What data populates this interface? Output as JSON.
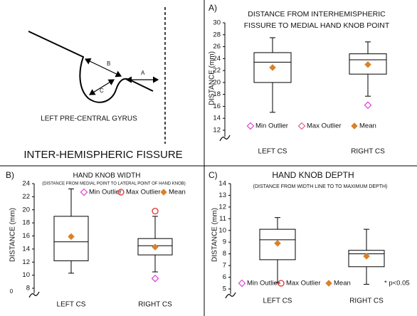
{
  "diagram": {
    "arrow_a": "A",
    "arrow_b": "B",
    "arrow_c": "C",
    "caption": "LEFT PRE-CENTRAL GYRUS",
    "fissure_label": "INTER-HEMISPHERIC FISSURE"
  },
  "chart_data": [
    {
      "type": "box",
      "panel_label": "A)",
      "title": [
        "DISTANCE FROM INTERHEMISPHERIC",
        "FISSURE TO MEDIAL HAND KNOB POINT"
      ],
      "y_label": "DISTANCE (mm)",
      "categories": [
        "LEFT CS",
        "RIGHT CS"
      ],
      "boxes": [
        {
          "min": 15,
          "q1": 20,
          "median": 23.4,
          "q3": 25,
          "max": 27.5,
          "mean": 22.5,
          "min_outlier": null,
          "max_outlier": null
        },
        {
          "min": 17.7,
          "q1": 21.4,
          "median": 23.8,
          "q3": 24.8,
          "max": 26.8,
          "mean": 23,
          "min_outlier": 16.2,
          "max_outlier": null
        }
      ],
      "legend": [
        {
          "name": "Min Outlier",
          "color": "#e040d8",
          "marker": "open-diamond"
        },
        {
          "name": "Max Outlier",
          "color": "#e06090",
          "marker": "open-diamond"
        },
        {
          "name": "Mean",
          "color": "#d9822b",
          "marker": "diamond"
        }
      ],
      "ylim": [
        12,
        30
      ],
      "yticks": [
        12,
        14,
        16,
        18,
        20,
        22,
        24,
        26,
        28,
        30
      ],
      "axis_break": true
    },
    {
      "type": "box",
      "panel_label": "B)",
      "title": [
        "HAND KNOB WIDTH"
      ],
      "subtitle": "(DISTANCE FROM MEDIAL POINT TO LATERAL POINT OF HAND KNOB)",
      "y_label": "DISTANCE (mm)",
      "categories": [
        "LEFT CS",
        "RIGHT CS"
      ],
      "boxes": [
        {
          "min": 10.3,
          "q1": 12.2,
          "median": 15.1,
          "q3": 19,
          "max": 23.2,
          "mean": 15.9,
          "min_outlier": null,
          "max_outlier": null
        },
        {
          "min": 10.5,
          "q1": 13.1,
          "median": 14.5,
          "q3": 15.6,
          "max": 19,
          "mean": 14.3,
          "min_outlier": 9.5,
          "max_outlier": 19.8
        }
      ],
      "legend": [
        {
          "name": "Min Outlier",
          "color": "#e040d8",
          "marker": "open-diamond"
        },
        {
          "name": "Max Outlier",
          "color": "#e03030",
          "marker": "open-circle"
        },
        {
          "name": "Mean",
          "color": "#d9822b",
          "marker": "diamond"
        }
      ],
      "ylim": [
        8,
        24
      ],
      "yticks": [
        8,
        10,
        12,
        14,
        16,
        18,
        20,
        22,
        24
      ],
      "axis_break": true,
      "axis_break_label": "0"
    },
    {
      "type": "box",
      "panel_label": "C)",
      "title": [
        "HAND KNOB DEPTH"
      ],
      "subtitle": "(DISTANCE FROM WIDTH LINE TO TO MAXIMUM DEPTH)",
      "y_label": "DISTANCE (mm)",
      "categories": [
        "LEFT CS",
        "RIGHT CS"
      ],
      "boxes": [
        {
          "min": 5.5,
          "q1": 7.5,
          "median": 9.2,
          "q3": 10.1,
          "max": 11.1,
          "mean": 8.9,
          "min_outlier": null,
          "max_outlier": null
        },
        {
          "min": 5.4,
          "q1": 6.9,
          "median": 8,
          "q3": 8.3,
          "max": 10.1,
          "mean": 7.8,
          "min_outlier": null,
          "max_outlier": null
        }
      ],
      "legend": [
        {
          "name": "Min Outlier",
          "color": "#e040d8",
          "marker": "open-diamond"
        },
        {
          "name": "Max Outlier",
          "color": "#e03030",
          "marker": "open-circle"
        },
        {
          "name": "Mean",
          "color": "#d9822b",
          "marker": "diamond"
        }
      ],
      "annotation": "* p<0.05",
      "ylim": [
        5,
        14
      ],
      "yticks": [
        5,
        6,
        7,
        8,
        9,
        10,
        11,
        12,
        13,
        14
      ],
      "axis_break": true
    }
  ]
}
